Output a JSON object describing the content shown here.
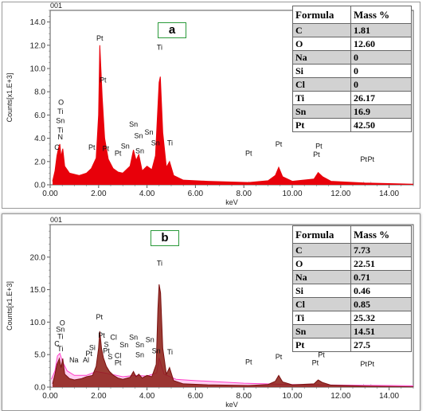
{
  "chart_data": [
    {
      "type": "line",
      "panel_label": "a",
      "top_label": "001",
      "xlabel": "keV",
      "ylabel": "Counts[x1.E+3]",
      "xlim": [
        0,
        15
      ],
      "ylim": [
        0,
        15
      ],
      "x_ticks": [
        "0.00",
        "2.00",
        "4.00",
        "6.00",
        "8.00",
        "10.00",
        "12.00",
        "14.00"
      ],
      "y_ticks": [
        "0.0",
        "2.0",
        "4.0",
        "6.0",
        "8.0",
        "10.0",
        "12.0",
        "14.0"
      ],
      "series": [
        {
          "color": "#e8000a",
          "points": [
            [
              0.1,
              0.3
            ],
            [
              0.2,
              1.2
            ],
            [
              0.28,
              2.5
            ],
            [
              0.35,
              3.2
            ],
            [
              0.4,
              3.5
            ],
            [
              0.45,
              2.4
            ],
            [
              0.52,
              3.1
            ],
            [
              0.6,
              1.6
            ],
            [
              0.8,
              1.0
            ],
            [
              1.2,
              0.8
            ],
            [
              1.5,
              1.0
            ],
            [
              1.7,
              1.4
            ],
            [
              1.9,
              2.3
            ],
            [
              2.0,
              6.0
            ],
            [
              2.05,
              12.0
            ],
            [
              2.09,
              10.2
            ],
            [
              2.15,
              7.5
            ],
            [
              2.25,
              4.0
            ],
            [
              2.4,
              2.2
            ],
            [
              2.6,
              1.4
            ],
            [
              2.8,
              1.1
            ],
            [
              3.0,
              1.0
            ],
            [
              3.3,
              1.6
            ],
            [
              3.44,
              3.0
            ],
            [
              3.55,
              2.1
            ],
            [
              3.66,
              2.6
            ],
            [
              3.8,
              1.2
            ],
            [
              4.0,
              1.6
            ],
            [
              4.2,
              1.3
            ],
            [
              4.35,
              2.5
            ],
            [
              4.5,
              8.8
            ],
            [
              4.55,
              9.3
            ],
            [
              4.65,
              4.5
            ],
            [
              4.8,
              1.5
            ],
            [
              4.93,
              2.0
            ],
            [
              5.1,
              0.8
            ],
            [
              5.5,
              0.4
            ],
            [
              6.5,
              0.3
            ],
            [
              8.2,
              0.2
            ],
            [
              9.0,
              0.35
            ],
            [
              9.3,
              0.8
            ],
            [
              9.44,
              1.5
            ],
            [
              9.6,
              0.7
            ],
            [
              10.0,
              0.3
            ],
            [
              10.9,
              0.5
            ],
            [
              11.07,
              1.05
            ],
            [
              11.25,
              0.7
            ],
            [
              11.6,
              0.3
            ],
            [
              13.0,
              0.15
            ],
            [
              15.0,
              0.05
            ]
          ]
        }
      ],
      "peak_labels": [
        {
          "text": "O",
          "x": 0.45,
          "y": 6.9
        },
        {
          "text": "Ti",
          "x": 0.42,
          "y": 6.1
        },
        {
          "text": "Sn",
          "x": 0.42,
          "y": 5.3
        },
        {
          "text": "Ti",
          "x": 0.42,
          "y": 4.5
        },
        {
          "text": "N",
          "x": 0.42,
          "y": 3.9
        },
        {
          "text": "C",
          "x": 0.28,
          "y": 3.0
        },
        {
          "text": "Pt",
          "x": 1.72,
          "y": 3.0
        },
        {
          "text": "Pt",
          "x": 2.05,
          "y": 12.4
        },
        {
          "text": "Pt",
          "x": 2.18,
          "y": 8.8
        },
        {
          "text": "Pt",
          "x": 2.3,
          "y": 2.9
        },
        {
          "text": "Pt",
          "x": 2.8,
          "y": 2.5
        },
        {
          "text": "Sn",
          "x": 3.1,
          "y": 3.1
        },
        {
          "text": "Sn",
          "x": 3.44,
          "y": 5.0
        },
        {
          "text": "Sn",
          "x": 3.7,
          "y": 2.7
        },
        {
          "text": "Sn",
          "x": 3.65,
          "y": 4.0
        },
        {
          "text": "Sn",
          "x": 4.08,
          "y": 4.3
        },
        {
          "text": "Sn",
          "x": 4.35,
          "y": 3.4
        },
        {
          "text": "Ti",
          "x": 4.52,
          "y": 11.6
        },
        {
          "text": "Ti",
          "x": 4.95,
          "y": 3.4
        },
        {
          "text": "Pt",
          "x": 8.2,
          "y": 2.5
        },
        {
          "text": "Pt",
          "x": 9.44,
          "y": 3.3
        },
        {
          "text": "Pt",
          "x": 11.1,
          "y": 3.1
        },
        {
          "text": "Pt",
          "x": 11.0,
          "y": 2.4
        },
        {
          "text": "Pt",
          "x": 12.95,
          "y": 2.0
        },
        {
          "text": "Pt",
          "x": 13.25,
          "y": 2.0
        }
      ],
      "marker_lines": [
        0.28,
        0.4,
        1.72,
        2.05,
        2.3,
        2.8,
        3.1,
        3.44,
        3.7,
        4.08,
        4.35,
        4.52,
        4.93,
        8.2,
        9.44,
        11.07,
        12.95,
        13.25
      ],
      "table": {
        "headers": [
          "Formula",
          "Mass %"
        ],
        "rows": [
          {
            "el": "C",
            "val": "1.81"
          },
          {
            "el": "O",
            "val": "12.60"
          },
          {
            "el": "Na",
            "val": "0"
          },
          {
            "el": "Si",
            "val": "0"
          },
          {
            "el": "Cl",
            "val": "0"
          },
          {
            "el": "Ti",
            "val": "26.17"
          },
          {
            "el": "Sn",
            "val": "16.9"
          },
          {
            "el": "Pt",
            "val": "42.50"
          }
        ]
      }
    },
    {
      "type": "line",
      "panel_label": "b",
      "top_label": "001",
      "xlabel": "keV",
      "ylabel": "Counts[x1.E+3]",
      "xlim": [
        0,
        15
      ],
      "ylim": [
        0,
        25
      ],
      "x_ticks": [
        "0.00",
        "2.00",
        "4.00",
        "6.00",
        "8.00",
        "10.00",
        "12.00",
        "14.00"
      ],
      "y_ticks": [
        "0.0",
        "5.0",
        "10.0",
        "15.0",
        "20.0"
      ],
      "series": [
        {
          "color": "#7a1010",
          "fill": "#8a1a10",
          "points": [
            [
              0.1,
              0.5
            ],
            [
              0.2,
              2.0
            ],
            [
              0.28,
              3.5
            ],
            [
              0.38,
              4.4
            ],
            [
              0.45,
              3.0
            ],
            [
              0.52,
              4.4
            ],
            [
              0.6,
              2.0
            ],
            [
              0.8,
              1.3
            ],
            [
              1.0,
              1.1
            ],
            [
              1.3,
              1.3
            ],
            [
              1.5,
              1.6
            ],
            [
              1.75,
              1.8
            ],
            [
              1.9,
              3.2
            ],
            [
              2.0,
              6.0
            ],
            [
              2.05,
              8.6
            ],
            [
              2.12,
              6.0
            ],
            [
              2.2,
              4.5
            ],
            [
              2.32,
              3.2
            ],
            [
              2.45,
              2.4
            ],
            [
              2.62,
              1.8
            ],
            [
              2.8,
              1.4
            ],
            [
              3.0,
              1.2
            ],
            [
              3.3,
              1.5
            ],
            [
              3.44,
              2.4
            ],
            [
              3.55,
              1.6
            ],
            [
              3.66,
              2.0
            ],
            [
              3.8,
              1.4
            ],
            [
              4.0,
              1.8
            ],
            [
              4.2,
              1.6
            ],
            [
              4.38,
              3.5
            ],
            [
              4.45,
              12.0
            ],
            [
              4.5,
              15.8
            ],
            [
              4.56,
              14.5
            ],
            [
              4.65,
              6.0
            ],
            [
              4.8,
              2.0
            ],
            [
              4.93,
              3.0
            ],
            [
              5.1,
              1.0
            ],
            [
              5.5,
              0.5
            ],
            [
              6.5,
              0.35
            ],
            [
              8.2,
              0.25
            ],
            [
              9.0,
              0.4
            ],
            [
              9.3,
              0.9
            ],
            [
              9.44,
              1.8
            ],
            [
              9.6,
              0.8
            ],
            [
              10.0,
              0.35
            ],
            [
              10.9,
              0.5
            ],
            [
              11.07,
              1.1
            ],
            [
              11.25,
              0.7
            ],
            [
              11.6,
              0.3
            ],
            [
              13.0,
              0.15
            ],
            [
              15.0,
              0.05
            ]
          ]
        },
        {
          "color": "#ff3ec8",
          "fill": "#ffc8f0",
          "points": [
            [
              0.05,
              1.2
            ],
            [
              0.2,
              2.5
            ],
            [
              0.3,
              4.8
            ],
            [
              0.4,
              5.2
            ],
            [
              0.5,
              4.0
            ],
            [
              0.7,
              2.5
            ],
            [
              1.0,
              1.8
            ],
            [
              1.5,
              1.8
            ],
            [
              1.9,
              2.4
            ],
            [
              2.5,
              2.0
            ],
            [
              3.0,
              1.6
            ],
            [
              3.5,
              1.8
            ],
            [
              4.0,
              1.7
            ],
            [
              4.4,
              2.2
            ],
            [
              4.5,
              4.5
            ],
            [
              4.7,
              2.0
            ],
            [
              5.2,
              1.2
            ],
            [
              6.0,
              1.0
            ],
            [
              8.0,
              0.6
            ],
            [
              10.0,
              0.4
            ],
            [
              12.0,
              0.3
            ],
            [
              14.0,
              0.25
            ],
            [
              15.0,
              0.2
            ]
          ]
        }
      ],
      "peak_labels": [
        {
          "text": "O",
          "x": 0.5,
          "y": 9.5
        },
        {
          "text": "Sn",
          "x": 0.42,
          "y": 8.5
        },
        {
          "text": "Ti",
          "x": 0.42,
          "y": 7.4
        },
        {
          "text": "C",
          "x": 0.28,
          "y": 6.3
        },
        {
          "text": "Ti",
          "x": 0.42,
          "y": 5.5
        },
        {
          "text": "Na",
          "x": 0.98,
          "y": 3.8
        },
        {
          "text": "Al",
          "x": 1.48,
          "y": 3.8
        },
        {
          "text": "Si",
          "x": 1.74,
          "y": 5.7
        },
        {
          "text": "Pt",
          "x": 1.6,
          "y": 4.8
        },
        {
          "text": "Pt",
          "x": 2.03,
          "y": 10.4
        },
        {
          "text": "Pt",
          "x": 2.12,
          "y": 7.6
        },
        {
          "text": "S",
          "x": 2.32,
          "y": 6.2
        },
        {
          "text": "Pt",
          "x": 2.32,
          "y": 5.2
        },
        {
          "text": "Cl",
          "x": 2.62,
          "y": 7.3
        },
        {
          "text": "S",
          "x": 2.48,
          "y": 4.3
        },
        {
          "text": "Cl",
          "x": 2.8,
          "y": 4.5
        },
        {
          "text": "Pt",
          "x": 2.8,
          "y": 3.4
        },
        {
          "text": "Sn",
          "x": 3.05,
          "y": 6.1
        },
        {
          "text": "Sn",
          "x": 3.44,
          "y": 7.3
        },
        {
          "text": "Sn",
          "x": 3.7,
          "y": 6.1
        },
        {
          "text": "Sn",
          "x": 3.7,
          "y": 4.6
        },
        {
          "text": "Sn",
          "x": 4.12,
          "y": 6.9
        },
        {
          "text": "Sn",
          "x": 4.38,
          "y": 5.2
        },
        {
          "text": "Ti",
          "x": 4.52,
          "y": 18.7
        },
        {
          "text": "Ti",
          "x": 4.95,
          "y": 5.0
        },
        {
          "text": "Pt",
          "x": 8.2,
          "y": 3.5
        },
        {
          "text": "Pt",
          "x": 9.44,
          "y": 4.3
        },
        {
          "text": "Pt",
          "x": 11.2,
          "y": 4.6
        },
        {
          "text": "Pt",
          "x": 10.95,
          "y": 3.4
        },
        {
          "text": "Pt",
          "x": 12.95,
          "y": 3.2
        },
        {
          "text": "Pt",
          "x": 13.25,
          "y": 3.2
        }
      ],
      "marker_lines": [
        0.28,
        0.42,
        0.98,
        1.48,
        1.74,
        2.03,
        2.32,
        2.48,
        2.8,
        3.05,
        3.44,
        3.7,
        4.12,
        4.38,
        4.52,
        4.95,
        8.2,
        9.44,
        11.07,
        12.95,
        13.25
      ],
      "table": {
        "headers": [
          "Formula",
          "Mass %"
        ],
        "rows": [
          {
            "el": "C",
            "val": "7.73"
          },
          {
            "el": "O",
            "val": "22.51"
          },
          {
            "el": "Na",
            "val": "0.71"
          },
          {
            "el": "Si",
            "val": "0.46"
          },
          {
            "el": "Cl",
            "val": "0.85"
          },
          {
            "el": "Ti",
            "val": "25.32"
          },
          {
            "el": "Sn",
            "val": "14.51"
          },
          {
            "el": "Pt",
            "val": "27.5"
          }
        ]
      }
    }
  ]
}
